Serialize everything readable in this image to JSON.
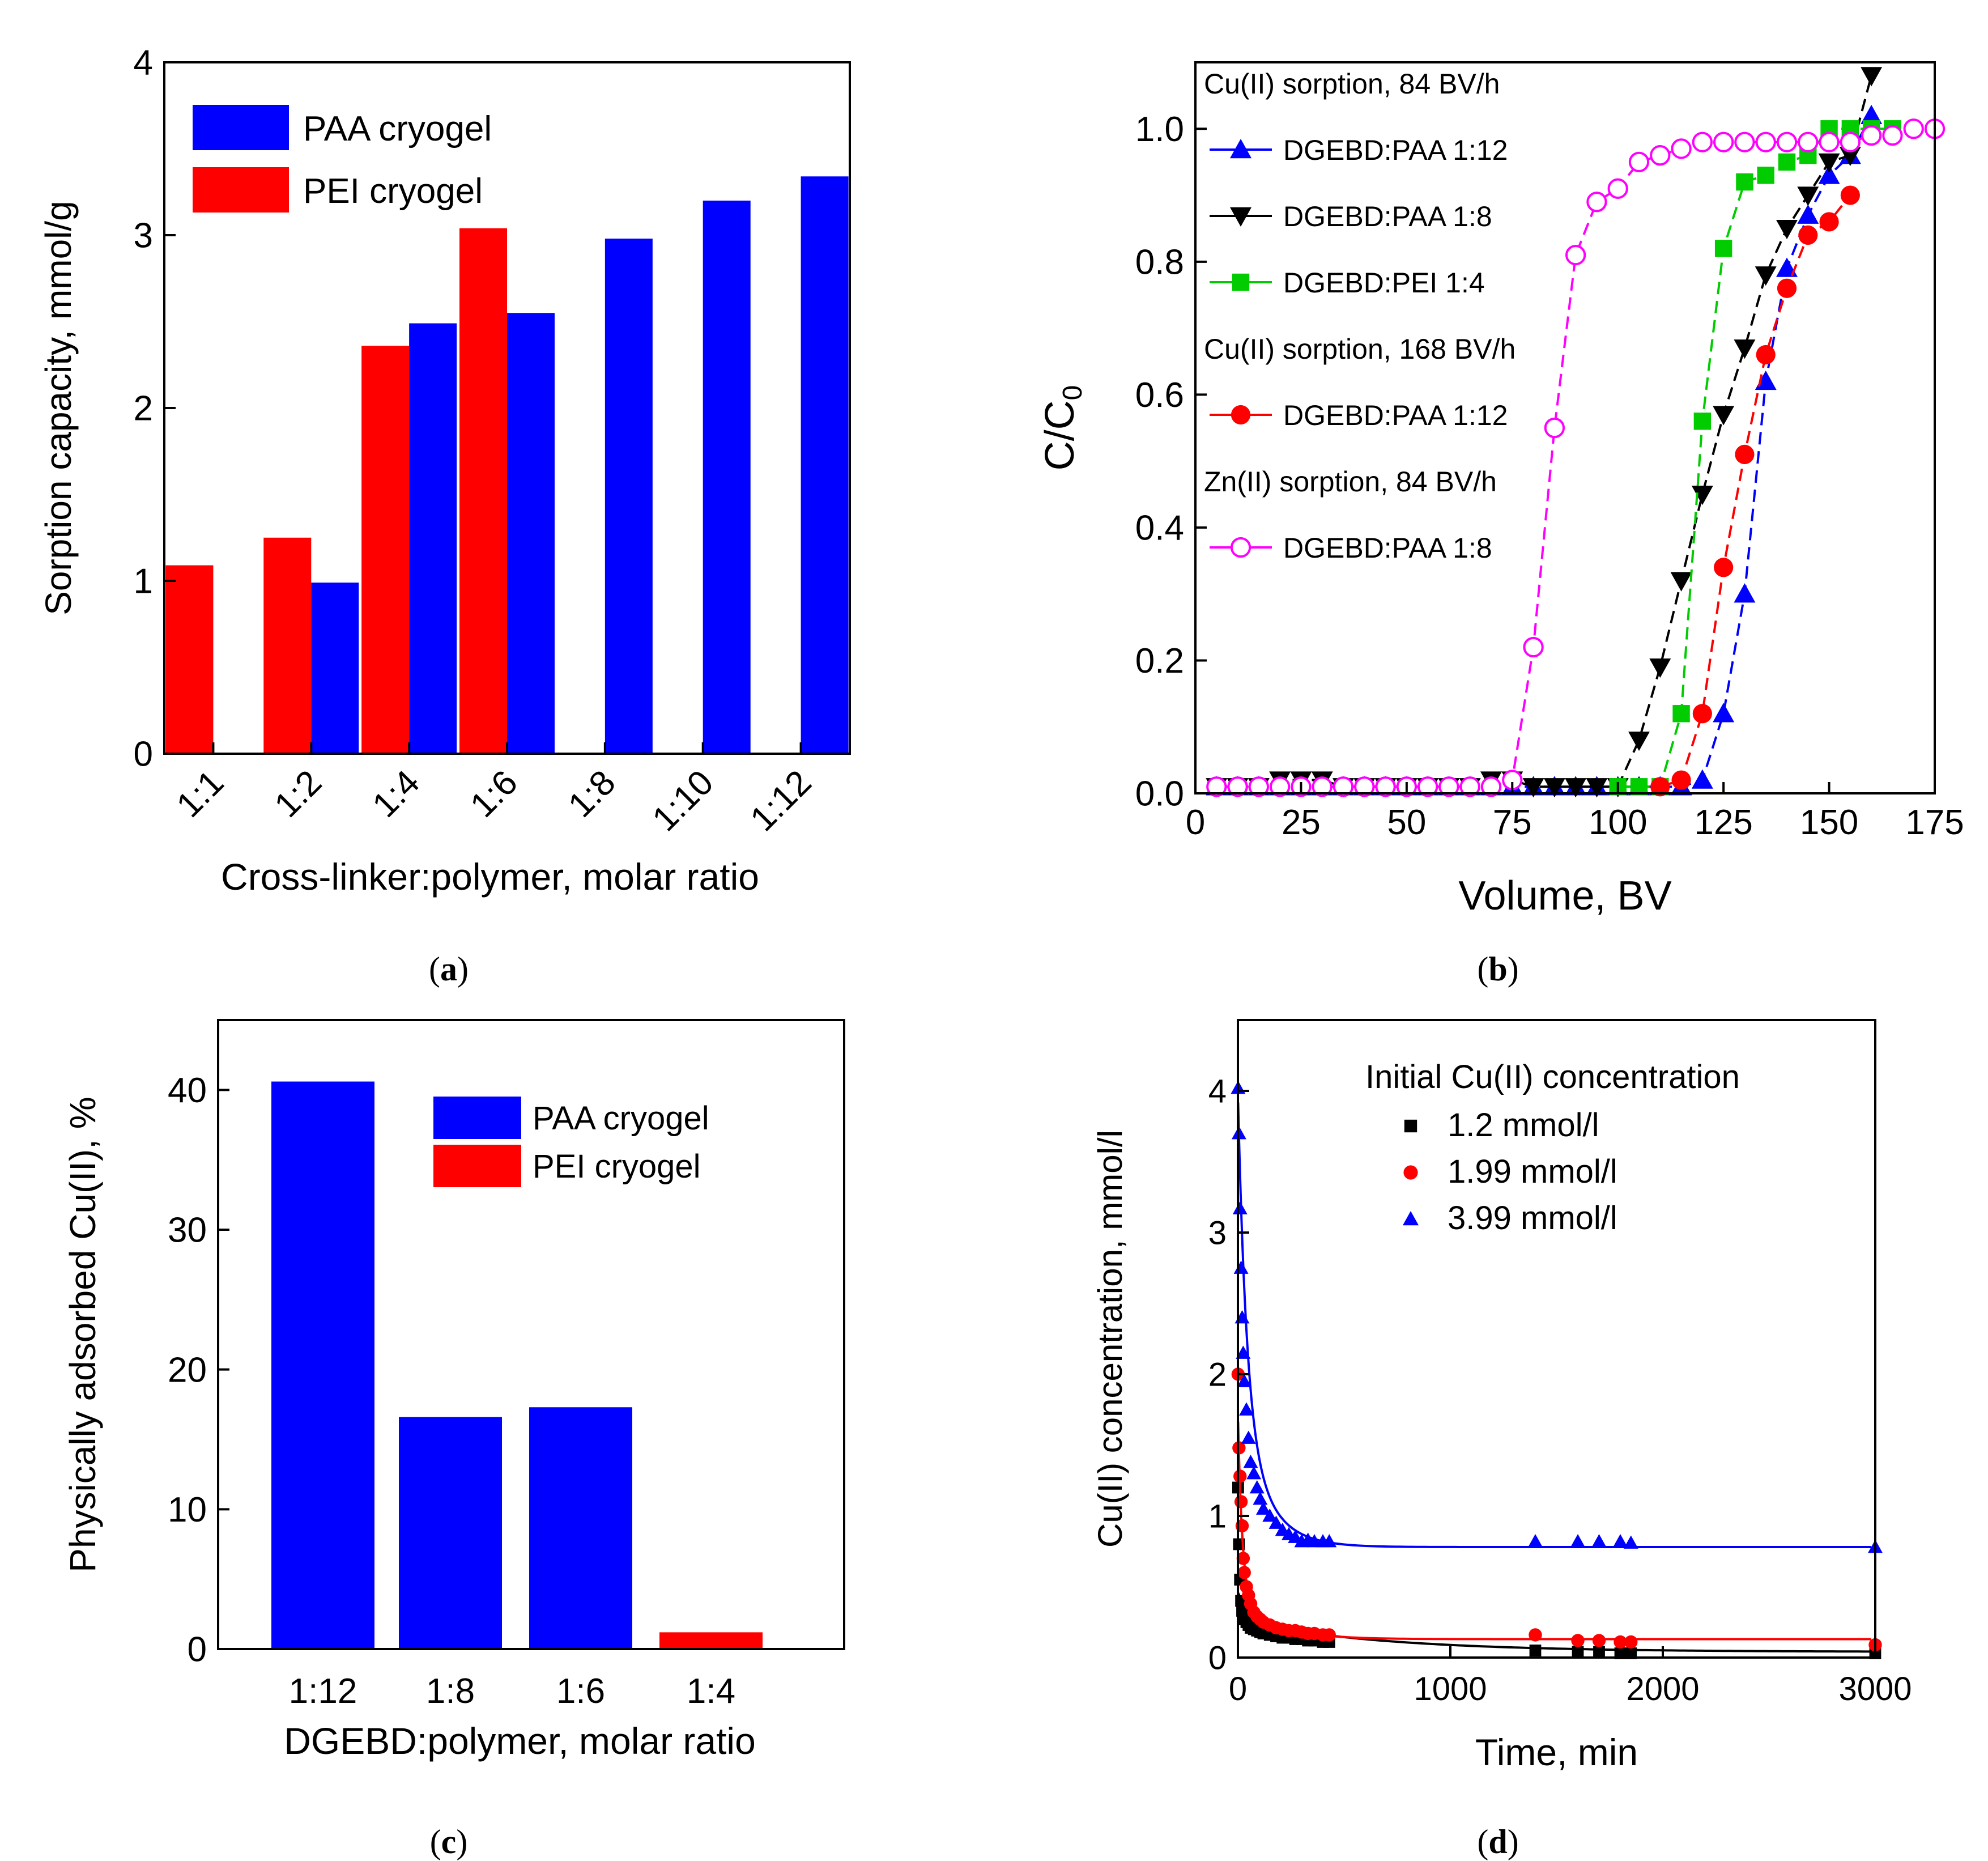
{
  "panel_labels": [
    "a",
    "b",
    "c",
    "d"
  ],
  "chart_data": [
    {
      "type": "bar",
      "panel": "a",
      "title": "",
      "xlabel": "Cross-linker:polymer, molar ratio",
      "ylabel": "Sorption capacity, mmol/g",
      "ylim": [
        0,
        4
      ],
      "yticks": [
        "0",
        "1",
        "2",
        "3",
        "4"
      ],
      "categories": [
        "1:1",
        "1:2",
        "1:4",
        "1:6",
        "1:8",
        "1:10",
        "1:12"
      ],
      "legend_position": "top-left",
      "series": [
        {
          "name": "PAA cryogel",
          "color": "#0000ff",
          "values": [
            null,
            0.99,
            2.49,
            2.55,
            2.98,
            3.2,
            3.34
          ]
        },
        {
          "name": "PEI  cryogel",
          "color": "#ff0000",
          "values": [
            1.09,
            1.25,
            2.36,
            3.04,
            null,
            null,
            null
          ]
        }
      ]
    },
    {
      "type": "line",
      "panel": "b",
      "title": "",
      "xlabel": "Volume, BV",
      "ylabel": "C/C",
      "ylabel_sub": "0",
      "xlim": [
        0,
        175
      ],
      "ylim": [
        0,
        1.1
      ],
      "xticks": [
        "0",
        "25",
        "50",
        "75",
        "100",
        "125",
        "150",
        "175"
      ],
      "yticks": [
        "0.0",
        "0.2",
        "0.4",
        "0.6",
        "0.8",
        "1.0"
      ],
      "legend_position": "top-left",
      "legend_headers": [
        "Cu(II) sorption, 84 BV/h",
        "Cu(II) sorption, 168 BV/h",
        "Zn(II) sorption, 84 BV/h"
      ],
      "series": [
        {
          "name": "DGEBD:PAA 1:12",
          "color": "#0000ff",
          "marker": "triangle-up",
          "x": [
            5,
            10,
            15,
            20,
            25,
            30,
            35,
            40,
            45,
            50,
            55,
            60,
            65,
            70,
            75,
            80,
            85,
            90,
            95,
            100,
            105,
            110,
            115,
            120,
            125,
            130,
            135,
            140,
            145,
            150,
            155,
            160
          ],
          "y": [
            0.01,
            0.01,
            0.01,
            0.01,
            0.01,
            0.01,
            0.01,
            0.01,
            0.01,
            0.01,
            0.01,
            0.01,
            0.01,
            0.01,
            0.01,
            0.01,
            0.01,
            0.01,
            0.01,
            0.01,
            0.01,
            0.01,
            0.01,
            0.02,
            0.12,
            0.3,
            0.62,
            0.79,
            0.87,
            0.93,
            0.96,
            1.02
          ]
        },
        {
          "name": "DGEBD:PAA 1:8",
          "color": "#000000",
          "marker": "triangle-down",
          "x": [
            5,
            10,
            15,
            20,
            25,
            30,
            35,
            40,
            45,
            50,
            55,
            60,
            65,
            70,
            75,
            80,
            85,
            90,
            95,
            100,
            105,
            110,
            115,
            120,
            125,
            130,
            135,
            140,
            145,
            150,
            155,
            160
          ],
          "y": [
            0.01,
            0.01,
            0.01,
            0.02,
            0.02,
            0.02,
            0.01,
            0.01,
            0.01,
            0.01,
            0.01,
            0.01,
            0.01,
            0.02,
            0.02,
            0.01,
            0.01,
            0.01,
            0.01,
            0.01,
            0.08,
            0.19,
            0.32,
            0.45,
            0.57,
            0.67,
            0.78,
            0.85,
            0.9,
            0.95,
            0.96,
            1.08
          ]
        },
        {
          "name": "DGEBD:PEI 1:4",
          "color": "#00cc00",
          "marker": "square",
          "x": [
            100,
            105,
            110,
            115,
            120,
            125,
            130,
            135,
            140,
            145,
            150,
            155,
            160,
            165
          ],
          "y": [
            0.01,
            0.01,
            0.01,
            0.12,
            0.56,
            0.82,
            0.92,
            0.93,
            0.95,
            0.96,
            1.0,
            1.0,
            1.0,
            1.0
          ]
        },
        {
          "name": "DGEBD:PAA 1:12",
          "color": "#ff0000",
          "marker": "circle",
          "x": [
            110,
            115,
            120,
            125,
            130,
            135,
            140,
            145,
            150,
            155
          ],
          "y": [
            0.01,
            0.02,
            0.12,
            0.34,
            0.51,
            0.66,
            0.76,
            0.84,
            0.86,
            0.9
          ]
        },
        {
          "name": "DGEBD:PAA 1:8",
          "color": "#ff00ff",
          "marker": "circle-open",
          "x": [
            5,
            10,
            15,
            20,
            25,
            30,
            35,
            40,
            45,
            50,
            55,
            60,
            65,
            70,
            75,
            80,
            85,
            90,
            95,
            100,
            105,
            110,
            115,
            120,
            125,
            130,
            135,
            140,
            145,
            150,
            155,
            160,
            165,
            170,
            175
          ],
          "y": [
            0.01,
            0.01,
            0.01,
            0.01,
            0.01,
            0.01,
            0.01,
            0.01,
            0.01,
            0.01,
            0.01,
            0.01,
            0.01,
            0.01,
            0.02,
            0.22,
            0.55,
            0.81,
            0.89,
            0.91,
            0.95,
            0.96,
            0.97,
            0.98,
            0.98,
            0.98,
            0.98,
            0.98,
            0.98,
            0.98,
            0.98,
            0.99,
            0.99,
            1.0,
            1.0
          ]
        }
      ]
    },
    {
      "type": "bar",
      "panel": "c",
      "title": "",
      "xlabel": "DGEBD:polymer, molar ratio",
      "ylabel": "Physically adsorbed Cu(II), %",
      "ylim": [
        0,
        45
      ],
      "yticks": [
        "0",
        "10",
        "20",
        "30",
        "40"
      ],
      "categories": [
        "1:12",
        "1:8",
        "1:6",
        "1:4"
      ],
      "legend_position": "top-right",
      "legend": [
        {
          "name": "PAA cryogel",
          "color": "#0000ff"
        },
        {
          "name": "PEI cryogel",
          "color": "#ff0000"
        }
      ],
      "values": [
        40.6,
        16.6,
        17.3,
        1.2
      ],
      "colors": [
        "#0000ff",
        "#0000ff",
        "#0000ff",
        "#ff0000"
      ]
    },
    {
      "type": "scatter",
      "panel": "d",
      "title": "",
      "xlabel": "Time, min",
      "ylabel": "Cu(II) concentration, mmol/l",
      "xlim": [
        0,
        3000
      ],
      "ylim": [
        0,
        4.5
      ],
      "xticks": [
        "0",
        "1000",
        "2000",
        "3000"
      ],
      "yticks": [
        "0",
        "1",
        "2",
        "3",
        "4"
      ],
      "legend_title": "Initial Cu(II) concentration",
      "legend_position": "top-right",
      "series": [
        {
          "name": "1.2 mmol/l",
          "color": "#000000",
          "marker": "square",
          "x": [
            1,
            5,
            10,
            15,
            20,
            25,
            30,
            40,
            50,
            60,
            75,
            90,
            105,
            120,
            150,
            180,
            210,
            240,
            270,
            300,
            330,
            360,
            400,
            430,
            1400,
            1600,
            1700,
            1800,
            1850,
            3000
          ],
          "y": [
            1.2,
            0.8,
            0.55,
            0.4,
            0.33,
            0.3,
            0.27,
            0.25,
            0.23,
            0.21,
            0.2,
            0.19,
            0.18,
            0.17,
            0.16,
            0.15,
            0.14,
            0.14,
            0.13,
            0.13,
            0.12,
            0.12,
            0.11,
            0.11,
            0.05,
            0.04,
            0.04,
            0.03,
            0.03,
            0.03
          ],
          "fit": {
            "a": 0.2,
            "k": 0.015,
            "c": 0.04,
            "b": 0.22,
            "k2": 0.0015
          }
        },
        {
          "name": "1.99 mmol/l",
          "color": "#ff0000",
          "marker": "circle",
          "x": [
            1,
            5,
            10,
            15,
            20,
            25,
            30,
            40,
            50,
            60,
            75,
            90,
            105,
            120,
            150,
            180,
            210,
            240,
            270,
            300,
            330,
            360,
            400,
            430,
            1400,
            1600,
            1700,
            1800,
            1850,
            3000
          ],
          "y": [
            2.0,
            1.48,
            1.28,
            1.1,
            0.93,
            0.7,
            0.6,
            0.5,
            0.44,
            0.38,
            0.32,
            0.29,
            0.27,
            0.25,
            0.23,
            0.21,
            0.2,
            0.19,
            0.19,
            0.18,
            0.17,
            0.17,
            0.16,
            0.16,
            0.16,
            0.12,
            0.12,
            0.11,
            0.11,
            0.09
          ],
          "fit": {
            "a": 1.3,
            "k": 0.05,
            "c": 0.13,
            "b": 0.3,
            "k2": 0.006
          }
        },
        {
          "name": "3.99 mmol/l",
          "color": "#0000ff",
          "marker": "triangle-up",
          "x": [
            1,
            5,
            10,
            15,
            20,
            25,
            30,
            40,
            50,
            60,
            75,
            90,
            105,
            120,
            150,
            180,
            210,
            240,
            270,
            300,
            330,
            360,
            400,
            430,
            1400,
            1600,
            1700,
            1800,
            1850,
            3000
          ],
          "y": [
            4.02,
            3.7,
            3.17,
            2.75,
            2.4,
            2.15,
            1.95,
            1.75,
            1.55,
            1.38,
            1.3,
            1.2,
            1.12,
            1.05,
            1.0,
            0.95,
            0.9,
            0.87,
            0.85,
            0.82,
            0.83,
            0.82,
            0.82,
            0.82,
            0.82,
            0.82,
            0.82,
            0.82,
            0.81,
            0.78
          ],
          "fit": {
            "a": 2.2,
            "k": 0.025,
            "c": 0.78,
            "b": 1.0,
            "k2": 0.008
          }
        }
      ]
    }
  ]
}
